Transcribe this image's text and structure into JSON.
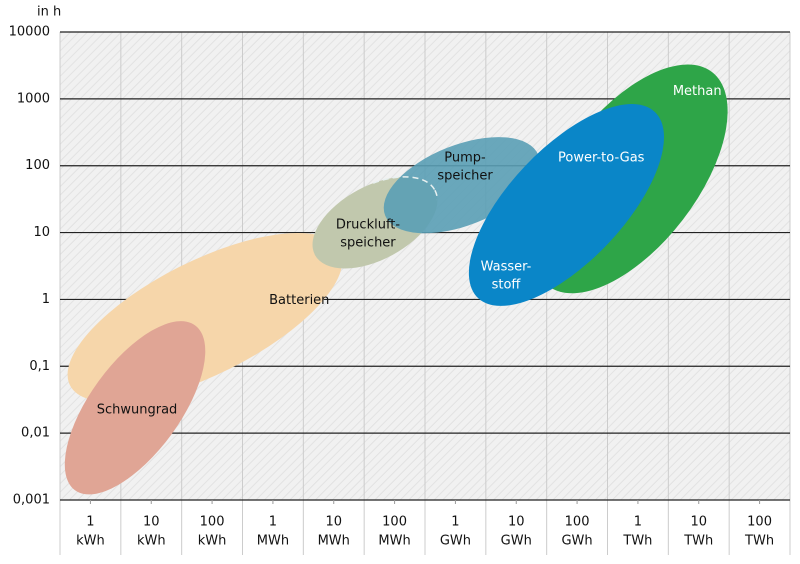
{
  "chart_data": {
    "type": "region",
    "y_label": "in h",
    "log_x": true,
    "log_y": true,
    "grid": true,
    "xlim": [
      316.2,
      316200000000000
    ],
    "xticks": [
      {
        "value": 1000,
        "label": "1",
        "unit": "kWh"
      },
      {
        "value": 10000,
        "label": "10",
        "unit": "kWh"
      },
      {
        "value": 100000,
        "label": "100",
        "unit": "kWh"
      },
      {
        "value": 1000000,
        "label": "1",
        "unit": "MWh"
      },
      {
        "value": 10000000,
        "label": "10",
        "unit": "MWh"
      },
      {
        "value": 100000000,
        "label": "100",
        "unit": "MWh"
      },
      {
        "value": 1000000000,
        "label": "1",
        "unit": "GWh"
      },
      {
        "value": 10000000000,
        "label": "10",
        "unit": "GWh"
      },
      {
        "value": 100000000000,
        "label": "100",
        "unit": "GWh"
      },
      {
        "value": 1000000000000,
        "label": "1",
        "unit": "TWh"
      },
      {
        "value": 10000000000000,
        "label": "10",
        "unit": "TWh"
      },
      {
        "value": 100000000000000,
        "label": "100",
        "unit": "TWh"
      }
    ],
    "ylim": [
      0.001,
      10000
    ],
    "yticks": [
      {
        "value": 0.001,
        "label": "0,001"
      },
      {
        "value": 0.01,
        "label": "0,01"
      },
      {
        "value": 0.1,
        "label": "0,1"
      },
      1,
      10,
      100,
      1000,
      10000
    ],
    "regions": [
      {
        "name": [
          "Schwungrad"
        ],
        "color": "#e0a595",
        "from": [
          558,
          0.0014
        ],
        "to": [
          52500,
          0.41
        ],
        "width": 1.35
      },
      {
        "name": [
          "Batterien"
        ],
        "color": "#f6d6aa",
        "from": [
          461,
          0.052
        ],
        "to": [
          12700000,
          5.5
        ],
        "width": 1.7
      },
      {
        "name": [
          "Druckluft-",
          "speicher"
        ],
        "color": "#c1c8ad",
        "from": [
          4920000,
          4.6
        ],
        "to": [
          460000000,
          43
        ],
        "width": 1.1
      },
      {
        "name": [
          "Pump-",
          "speicher"
        ],
        "color": "#5a9fb5",
        "from": [
          70000000,
          18
        ],
        "to": [
          23000000000,
          145
        ],
        "width": 1.2
      },
      {
        "name": [
          "Methan"
        ],
        "color": "#2ea548",
        "from": [
          33000000000,
          1.6
        ],
        "to": [
          16500000000000,
          2520
        ],
        "width": 2.0
      },
      {
        "name": [
          "Power-to-Gas"
        ],
        "color": "#0a86c8",
        "from": [
          2350000000,
          1.05
        ],
        "to": [
          1900000000000,
          637
        ],
        "width": 1.7
      }
    ],
    "annotations": [
      {
        "text": [
          "Wasser-",
          "stoff"
        ]
      }
    ]
  }
}
